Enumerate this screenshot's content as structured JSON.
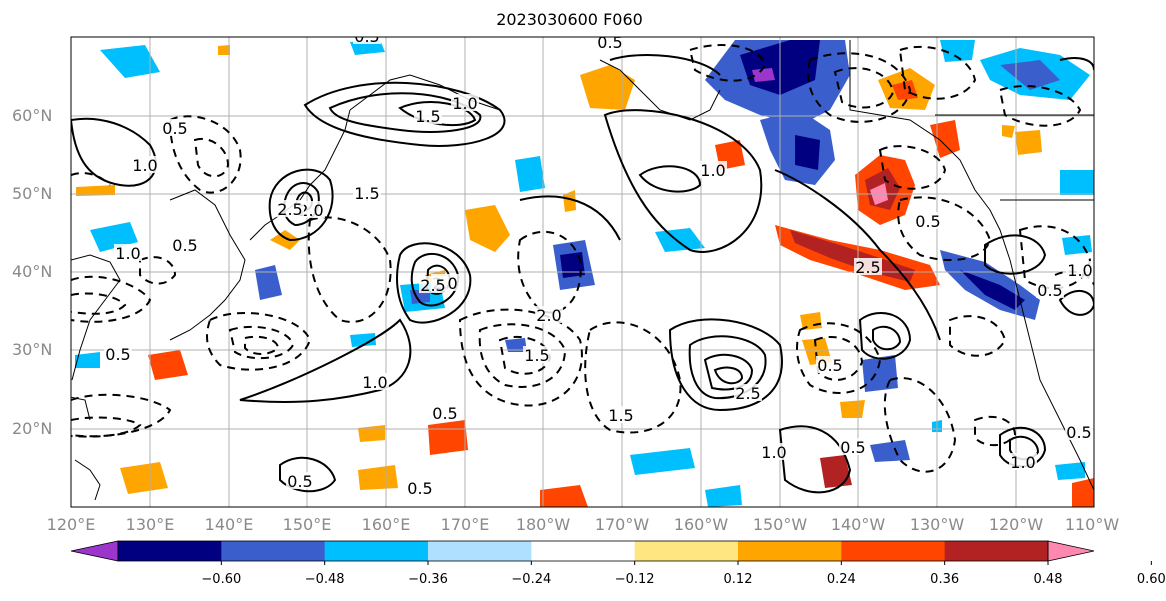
{
  "title": "2023030600 F060",
  "lat_labels": [
    "60°N",
    "50°N",
    "40°N",
    "30°N",
    "20°N"
  ],
  "lon_labels": [
    "120°E",
    "130°E",
    "140°E",
    "150°E",
    "160°E",
    "170°E",
    "180°W",
    "170°W",
    "160°W",
    "150°W",
    "140°W",
    "130°W",
    "120°W",
    "110°W"
  ],
  "colorbar": {
    "ticks": [
      "−0.60",
      "−0.48",
      "−0.36",
      "−0.24",
      "−0.12",
      "0.12",
      "0.24",
      "0.36",
      "0.48",
      "0.60"
    ],
    "colors": [
      "#9b35cc",
      "#000080",
      "#3a5fcd",
      "#00bfff",
      "#b0e0ff",
      "#ffffff",
      "#ffe680",
      "#ffa500",
      "#ff4500",
      "#b22222",
      "#ff88b0"
    ]
  },
  "contour_labels": [
    "1.0",
    "0.5",
    "1.5",
    "2.0",
    "2.5",
    "0.5",
    "1.0",
    "1.5",
    "0.5",
    "2.0",
    "2.5",
    "0.5",
    "1.0",
    "1.5",
    "1.0",
    "0.5",
    "2.0",
    "2.5",
    "1.0",
    "0.5",
    "0.5",
    "1.0",
    "0.5",
    "1.5",
    "0.5",
    "0.5",
    "1.0",
    "2.5",
    "1.0",
    "0.5",
    "0.5",
    "0.5"
  ],
  "colors": {
    "positive_contour": "#000000",
    "negative_contour": "#000000",
    "coastline": "#000000",
    "grid": "#b0b0b0"
  }
}
